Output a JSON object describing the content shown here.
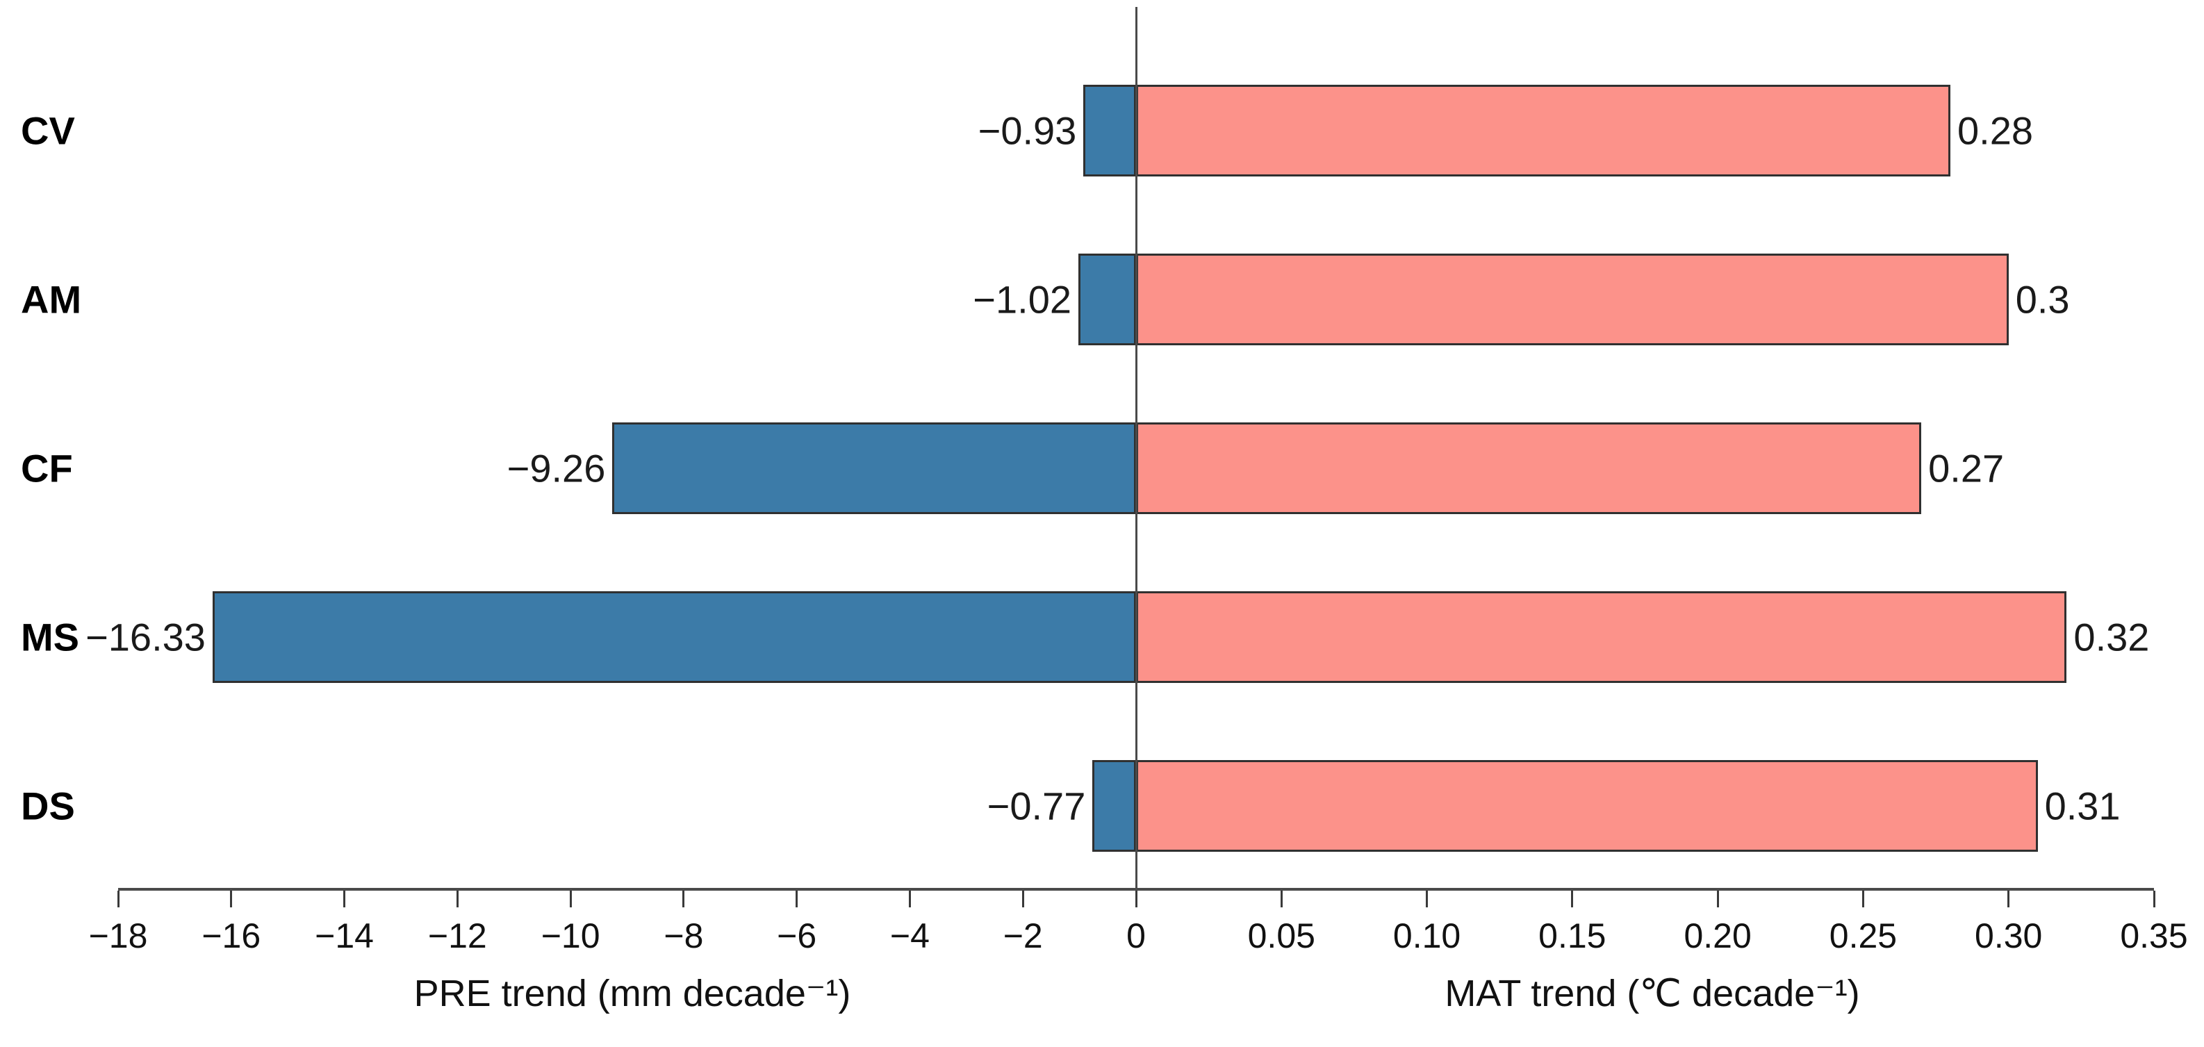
{
  "chart_data": {
    "type": "bar",
    "orientation": "horizontal-diverging",
    "title": "",
    "categories": [
      "CV",
      "AM",
      "CF",
      "MS",
      "DS"
    ],
    "series": [
      {
        "name": "PRE trend",
        "side": "left",
        "values": [
          -0.93,
          -1.02,
          -9.26,
          -16.33,
          -0.77
        ],
        "value_labels": [
          "−0.93",
          "−1.02",
          "−9.26",
          "−16.33",
          "−0.77"
        ],
        "color": "#3C7BA8",
        "axis_label": "PRE trend (mm decade⁻¹)",
        "xlim": [
          -18,
          0
        ],
        "ticks": [
          -18,
          -16,
          -14,
          -12,
          -10,
          -8,
          -6,
          -4,
          -2,
          0
        ],
        "tick_labels": [
          "−18",
          "−16",
          "−14",
          "−12",
          "−10",
          "−8",
          "−6",
          "−4",
          "−2",
          "0"
        ]
      },
      {
        "name": "MAT trend",
        "side": "right",
        "values": [
          0.28,
          0.3,
          0.27,
          0.32,
          0.31
        ],
        "value_labels": [
          "0.28",
          "0.3",
          "0.27",
          "0.32",
          "0.31"
        ],
        "color": "#FC928A",
        "axis_label": "MAT trend (℃ decade⁻¹)",
        "xlim": [
          0,
          0.35
        ],
        "ticks": [
          0.05,
          0.1,
          0.15,
          0.2,
          0.25,
          0.3,
          0.35
        ],
        "tick_labels": [
          "0.05",
          "0.10",
          "0.15",
          "0.20",
          "0.25",
          "0.30",
          "0.35"
        ]
      }
    ],
    "bar_border_color": "#303030",
    "axis_color": "#4a4a4a",
    "grid": false,
    "legend": false
  }
}
